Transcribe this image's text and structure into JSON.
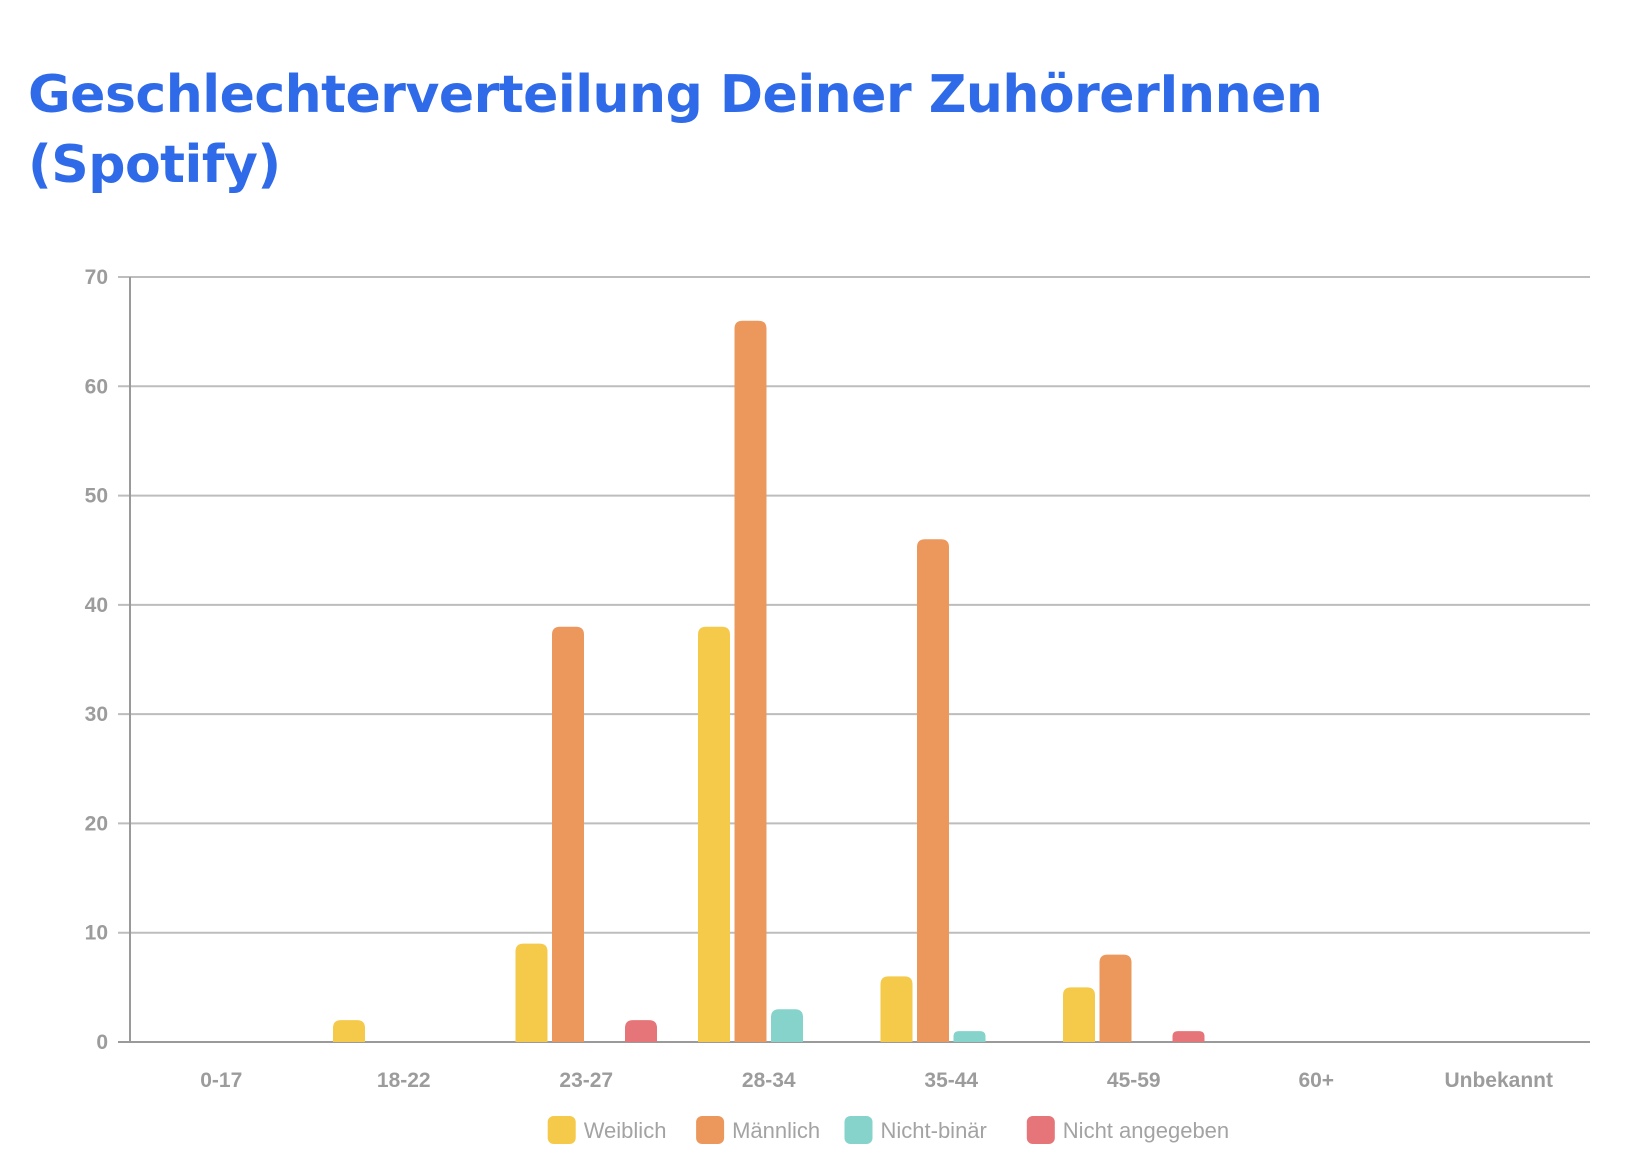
{
  "chart_data": {
    "type": "bar",
    "title": "Geschlechterverteilung Deiner ZuhörerInnen (Spotify)",
    "categories": [
      "0-17",
      "18-22",
      "23-27",
      "28-34",
      "35-44",
      "45-59",
      "60+",
      "Unbekannt"
    ],
    "series": [
      {
        "name": "Weiblich",
        "color": "#f5c94a",
        "values": [
          0,
          2,
          9,
          38,
          6,
          5,
          0,
          0
        ]
      },
      {
        "name": "Männlich",
        "color": "#ec985c",
        "values": [
          0,
          0,
          38,
          66,
          46,
          8,
          0,
          0
        ]
      },
      {
        "name": "Nicht-binär",
        "color": "#85d3cb",
        "values": [
          0,
          0,
          0,
          3,
          1,
          0,
          0,
          0
        ]
      },
      {
        "name": "Nicht angegeben",
        "color": "#e57579",
        "values": [
          0,
          0,
          2,
          0,
          0,
          1,
          0,
          0
        ]
      }
    ],
    "ylim": [
      0,
      70
    ],
    "yticks": [
      0,
      10,
      20,
      30,
      40,
      50,
      60,
      70
    ],
    "grid": true,
    "legend_position": "bottom"
  }
}
